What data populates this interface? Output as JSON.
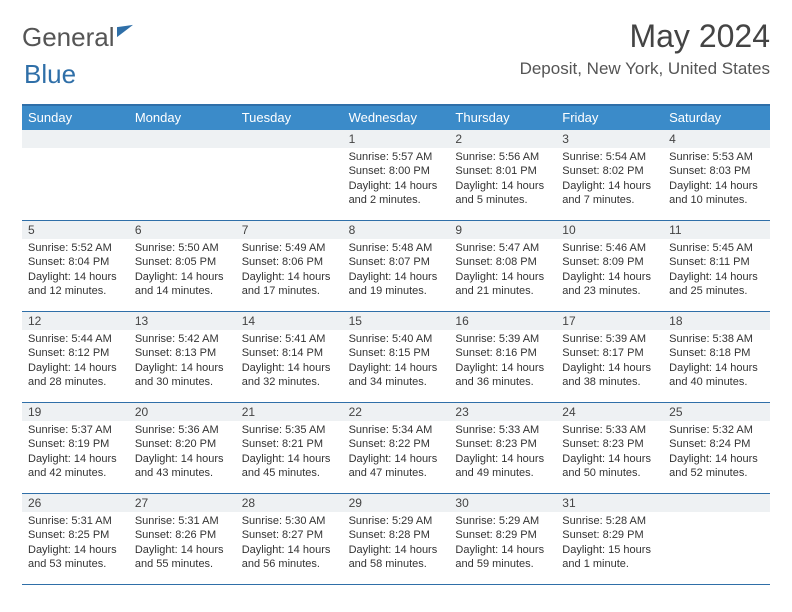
{
  "logo": {
    "text1": "General",
    "text2": "Blue"
  },
  "title": "May 2024",
  "location": "Deposit, New York, United States",
  "colors": {
    "header_bg": "#3b8bc9",
    "border": "#2f6fa8",
    "daynum_bg": "#eef1f3",
    "text": "#333333"
  },
  "dow": [
    "Sunday",
    "Monday",
    "Tuesday",
    "Wednesday",
    "Thursday",
    "Friday",
    "Saturday"
  ],
  "weeks": [
    [
      {
        "n": "",
        "sr": "",
        "ss": "",
        "dl": ""
      },
      {
        "n": "",
        "sr": "",
        "ss": "",
        "dl": ""
      },
      {
        "n": "",
        "sr": "",
        "ss": "",
        "dl": ""
      },
      {
        "n": "1",
        "sr": "Sunrise: 5:57 AM",
        "ss": "Sunset: 8:00 PM",
        "dl": "Daylight: 14 hours and 2 minutes."
      },
      {
        "n": "2",
        "sr": "Sunrise: 5:56 AM",
        "ss": "Sunset: 8:01 PM",
        "dl": "Daylight: 14 hours and 5 minutes."
      },
      {
        "n": "3",
        "sr": "Sunrise: 5:54 AM",
        "ss": "Sunset: 8:02 PM",
        "dl": "Daylight: 14 hours and 7 minutes."
      },
      {
        "n": "4",
        "sr": "Sunrise: 5:53 AM",
        "ss": "Sunset: 8:03 PM",
        "dl": "Daylight: 14 hours and 10 minutes."
      }
    ],
    [
      {
        "n": "5",
        "sr": "Sunrise: 5:52 AM",
        "ss": "Sunset: 8:04 PM",
        "dl": "Daylight: 14 hours and 12 minutes."
      },
      {
        "n": "6",
        "sr": "Sunrise: 5:50 AM",
        "ss": "Sunset: 8:05 PM",
        "dl": "Daylight: 14 hours and 14 minutes."
      },
      {
        "n": "7",
        "sr": "Sunrise: 5:49 AM",
        "ss": "Sunset: 8:06 PM",
        "dl": "Daylight: 14 hours and 17 minutes."
      },
      {
        "n": "8",
        "sr": "Sunrise: 5:48 AM",
        "ss": "Sunset: 8:07 PM",
        "dl": "Daylight: 14 hours and 19 minutes."
      },
      {
        "n": "9",
        "sr": "Sunrise: 5:47 AM",
        "ss": "Sunset: 8:08 PM",
        "dl": "Daylight: 14 hours and 21 minutes."
      },
      {
        "n": "10",
        "sr": "Sunrise: 5:46 AM",
        "ss": "Sunset: 8:09 PM",
        "dl": "Daylight: 14 hours and 23 minutes."
      },
      {
        "n": "11",
        "sr": "Sunrise: 5:45 AM",
        "ss": "Sunset: 8:11 PM",
        "dl": "Daylight: 14 hours and 25 minutes."
      }
    ],
    [
      {
        "n": "12",
        "sr": "Sunrise: 5:44 AM",
        "ss": "Sunset: 8:12 PM",
        "dl": "Daylight: 14 hours and 28 minutes."
      },
      {
        "n": "13",
        "sr": "Sunrise: 5:42 AM",
        "ss": "Sunset: 8:13 PM",
        "dl": "Daylight: 14 hours and 30 minutes."
      },
      {
        "n": "14",
        "sr": "Sunrise: 5:41 AM",
        "ss": "Sunset: 8:14 PM",
        "dl": "Daylight: 14 hours and 32 minutes."
      },
      {
        "n": "15",
        "sr": "Sunrise: 5:40 AM",
        "ss": "Sunset: 8:15 PM",
        "dl": "Daylight: 14 hours and 34 minutes."
      },
      {
        "n": "16",
        "sr": "Sunrise: 5:39 AM",
        "ss": "Sunset: 8:16 PM",
        "dl": "Daylight: 14 hours and 36 minutes."
      },
      {
        "n": "17",
        "sr": "Sunrise: 5:39 AM",
        "ss": "Sunset: 8:17 PM",
        "dl": "Daylight: 14 hours and 38 minutes."
      },
      {
        "n": "18",
        "sr": "Sunrise: 5:38 AM",
        "ss": "Sunset: 8:18 PM",
        "dl": "Daylight: 14 hours and 40 minutes."
      }
    ],
    [
      {
        "n": "19",
        "sr": "Sunrise: 5:37 AM",
        "ss": "Sunset: 8:19 PM",
        "dl": "Daylight: 14 hours and 42 minutes."
      },
      {
        "n": "20",
        "sr": "Sunrise: 5:36 AM",
        "ss": "Sunset: 8:20 PM",
        "dl": "Daylight: 14 hours and 43 minutes."
      },
      {
        "n": "21",
        "sr": "Sunrise: 5:35 AM",
        "ss": "Sunset: 8:21 PM",
        "dl": "Daylight: 14 hours and 45 minutes."
      },
      {
        "n": "22",
        "sr": "Sunrise: 5:34 AM",
        "ss": "Sunset: 8:22 PM",
        "dl": "Daylight: 14 hours and 47 minutes."
      },
      {
        "n": "23",
        "sr": "Sunrise: 5:33 AM",
        "ss": "Sunset: 8:23 PM",
        "dl": "Daylight: 14 hours and 49 minutes."
      },
      {
        "n": "24",
        "sr": "Sunrise: 5:33 AM",
        "ss": "Sunset: 8:23 PM",
        "dl": "Daylight: 14 hours and 50 minutes."
      },
      {
        "n": "25",
        "sr": "Sunrise: 5:32 AM",
        "ss": "Sunset: 8:24 PM",
        "dl": "Daylight: 14 hours and 52 minutes."
      }
    ],
    [
      {
        "n": "26",
        "sr": "Sunrise: 5:31 AM",
        "ss": "Sunset: 8:25 PM",
        "dl": "Daylight: 14 hours and 53 minutes."
      },
      {
        "n": "27",
        "sr": "Sunrise: 5:31 AM",
        "ss": "Sunset: 8:26 PM",
        "dl": "Daylight: 14 hours and 55 minutes."
      },
      {
        "n": "28",
        "sr": "Sunrise: 5:30 AM",
        "ss": "Sunset: 8:27 PM",
        "dl": "Daylight: 14 hours and 56 minutes."
      },
      {
        "n": "29",
        "sr": "Sunrise: 5:29 AM",
        "ss": "Sunset: 8:28 PM",
        "dl": "Daylight: 14 hours and 58 minutes."
      },
      {
        "n": "30",
        "sr": "Sunrise: 5:29 AM",
        "ss": "Sunset: 8:29 PM",
        "dl": "Daylight: 14 hours and 59 minutes."
      },
      {
        "n": "31",
        "sr": "Sunrise: 5:28 AM",
        "ss": "Sunset: 8:29 PM",
        "dl": "Daylight: 15 hours and 1 minute."
      },
      {
        "n": "",
        "sr": "",
        "ss": "",
        "dl": ""
      }
    ]
  ]
}
